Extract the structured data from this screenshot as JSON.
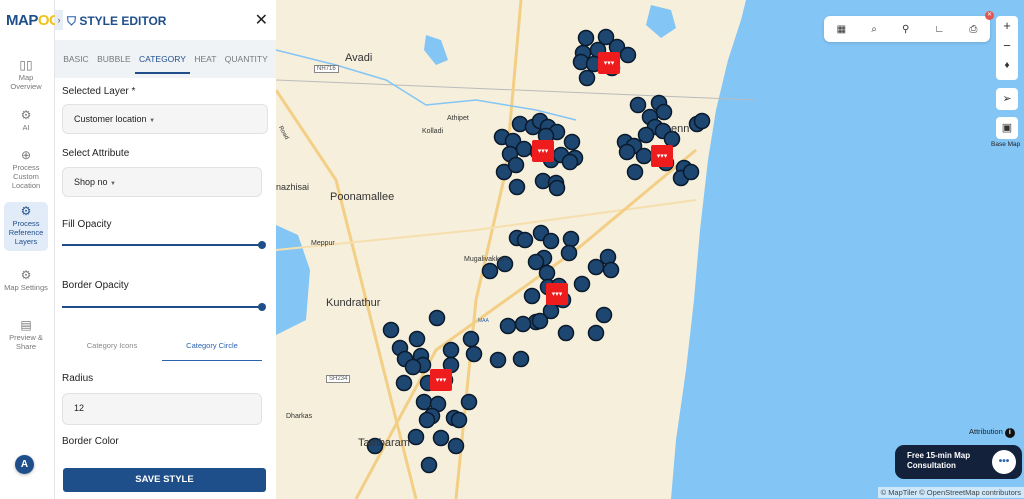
{
  "brand": {
    "logo_a": "MAP",
    "logo_b": "OG"
  },
  "rail": {
    "items": [
      {
        "label": "Map Overview",
        "icon": "map-icon"
      },
      {
        "label": "AI",
        "icon": "gear-icon"
      },
      {
        "label": "Process Custom Location",
        "icon": "location-pin-icon"
      },
      {
        "label": "Process Reference Layers",
        "icon": "layers-gear-icon",
        "active": true
      },
      {
        "label": "Map Settings",
        "icon": "gear-icon"
      },
      {
        "label": "Preview & Share",
        "icon": "preview-icon"
      }
    ],
    "avatar": "A"
  },
  "panel": {
    "title": "STYLE EDITOR",
    "tabs": [
      "BASIC",
      "BUBBLE",
      "CATEGORY",
      "HEAT",
      "QUANTITY"
    ],
    "active_tab": "CATEGORY",
    "selected_layer_label": "Selected Layer *",
    "selected_layer_value": "Customer location",
    "attribute_label": "Select Attribute",
    "attribute_value": "Shop no",
    "fill_opacity_label": "Fill Opacity",
    "fill_opacity": 1.0,
    "border_opacity_label": "Border Opacity",
    "border_opacity": 1.0,
    "subtabs": [
      "Category Icons",
      "Category Circle"
    ],
    "active_subtab": "Category Circle",
    "radius_label": "Radius",
    "radius_value": "12",
    "border_color_label": "Border Color",
    "save_label": "SAVE STYLE"
  },
  "map": {
    "labels": {
      "avadi": "Avadi",
      "athipet": "Athipet",
      "kolladi": "Kolladi",
      "nazhisai": "nazhisai",
      "poonamallee": "Poonamallee",
      "meppur": "Meppur",
      "kundrathur": "Kundrathur",
      "dharkas": "Dharkas",
      "tambaram": "Tambaram",
      "mugalivakkam": "Mugalivakkam",
      "chennai": "enn",
      "road": "Road",
      "maa": "MAA"
    },
    "shields": {
      "nh": "NH716",
      "sh": "SH234"
    },
    "colors": {
      "marker": "#1d4670",
      "shop": "#ee1c1c",
      "water": "#83c5f5",
      "land": "#f6efdc"
    },
    "toolbar": [
      "map-icon",
      "search-icon",
      "pin-icon",
      "boot-icon",
      "print-icon"
    ],
    "controls": {
      "zoom_in": "+",
      "zoom_out": "−",
      "compass": "compass-icon",
      "locate": "navigate-icon",
      "basemap": "Base Map"
    },
    "attribution": "Attribution",
    "consult": {
      "line1": "Free 15-min Map",
      "line2": "Consultation"
    },
    "copyright": "© MapTiler © OpenStreetMap contributors"
  }
}
